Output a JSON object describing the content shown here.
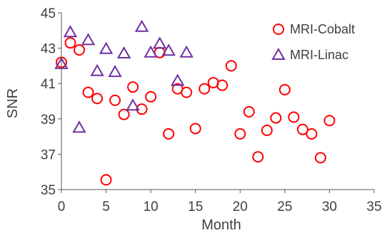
{
  "chart_data": {
    "type": "scatter",
    "title": "",
    "xlabel": "Month",
    "ylabel": "SNR",
    "xlim": [
      0,
      35
    ],
    "ylim": [
      35,
      45
    ],
    "xticks": [
      0,
      5,
      10,
      15,
      20,
      25,
      30,
      35
    ],
    "yticks": [
      35,
      37,
      39,
      41,
      43,
      45
    ],
    "grid": false,
    "legend_position": "top-right",
    "series": [
      {
        "name": "MRI-Cobalt",
        "marker": "circle",
        "color": "#ff0000",
        "points": [
          [
            0,
            42.2
          ],
          [
            1,
            43.3
          ],
          [
            2,
            42.9
          ],
          [
            3,
            40.5
          ],
          [
            4,
            40.15
          ],
          [
            5,
            35.55
          ],
          [
            6,
            40.05
          ],
          [
            7,
            39.25
          ],
          [
            8,
            40.8
          ],
          [
            9,
            39.55
          ],
          [
            10,
            40.25
          ],
          [
            11,
            42.75
          ],
          [
            12,
            38.15
          ],
          [
            13,
            40.7
          ],
          [
            14,
            40.5
          ],
          [
            15,
            38.45
          ],
          [
            16,
            40.7
          ],
          [
            17,
            41.05
          ],
          [
            18,
            40.9
          ],
          [
            19,
            42.0
          ],
          [
            20,
            38.15
          ],
          [
            21,
            39.4
          ],
          [
            22,
            36.85
          ],
          [
            23,
            38.35
          ],
          [
            24,
            39.05
          ],
          [
            25,
            40.65
          ],
          [
            26,
            39.1
          ],
          [
            27,
            38.4
          ],
          [
            28,
            38.15
          ],
          [
            29,
            36.8
          ],
          [
            30,
            38.9
          ]
        ]
      },
      {
        "name": "MRI-Linac",
        "marker": "triangle",
        "color": "#7030a0",
        "points": [
          [
            0,
            42.1
          ],
          [
            1,
            43.9
          ],
          [
            2,
            38.5
          ],
          [
            3,
            43.45
          ],
          [
            4,
            41.7
          ],
          [
            5,
            42.95
          ],
          [
            6,
            41.65
          ],
          [
            7,
            42.7
          ],
          [
            8,
            39.75
          ],
          [
            9,
            44.2
          ],
          [
            10,
            42.75
          ],
          [
            11,
            43.25
          ],
          [
            12,
            42.85
          ],
          [
            13,
            41.15
          ],
          [
            14,
            42.75
          ]
        ]
      }
    ]
  }
}
